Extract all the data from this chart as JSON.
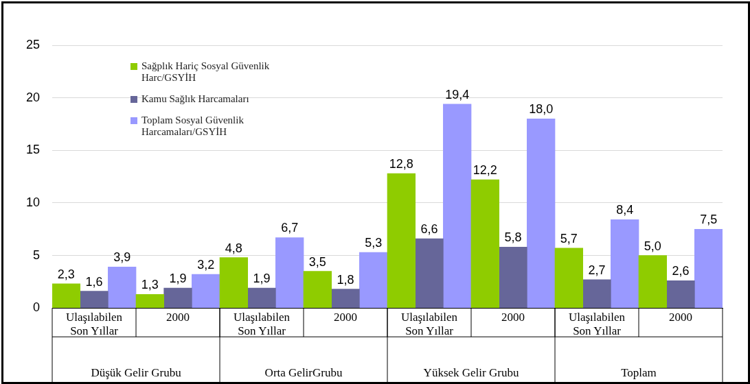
{
  "chart_data": {
    "type": "bar",
    "categories": [
      "Ulaşılabilen Son Yıllar",
      "2000",
      "Ulaşılabilen Son Yıllar",
      "2000",
      "Ulaşılabilen Son Yıllar",
      "2000",
      "Ulaşılabilen Son Yıllar",
      "2000"
    ],
    "series": [
      {
        "name": "Sağplık Hariç Sosyal Güvenlik Harc/GSYİH",
        "color": "#8fcc00",
        "values": [
          2.3,
          1.3,
          4.8,
          3.5,
          12.8,
          12.2,
          5.7,
          5.0
        ],
        "value_labels": [
          "2,3",
          "1,3",
          "4,8",
          "3,5",
          "12,8",
          "12,2",
          "5,7",
          "5,0"
        ]
      },
      {
        "name": "Kamu Sağlık Harcamaları",
        "color": "#666699",
        "values": [
          1.6,
          1.9,
          1.9,
          1.8,
          6.6,
          5.8,
          2.7,
          2.6
        ],
        "value_labels": [
          "1,6",
          "1,9",
          "1,9",
          "1,8",
          "6,6",
          "5,8",
          "2,7",
          "2,6"
        ]
      },
      {
        "name": "Toplam Sosyal Güvenlik Harcamaları/GSYİH",
        "color": "#9999ff",
        "values": [
          3.9,
          3.2,
          6.7,
          5.3,
          19.4,
          18.0,
          8.4,
          7.5
        ],
        "value_labels": [
          "3,9",
          "3,2",
          "6,7",
          "5,3",
          "19,4",
          "18,0",
          "8,4",
          "7,5"
        ]
      }
    ],
    "annotations": [
      "Düşük Gelir Grubu",
      "Orta GelirGrubu",
      "Yüksek Gelir Grubu",
      "Toplam"
    ],
    "ylim": [
      0,
      25
    ],
    "yticks": [
      0,
      5,
      10,
      15,
      20,
      25
    ],
    "grid": "y",
    "legend": "top left"
  }
}
